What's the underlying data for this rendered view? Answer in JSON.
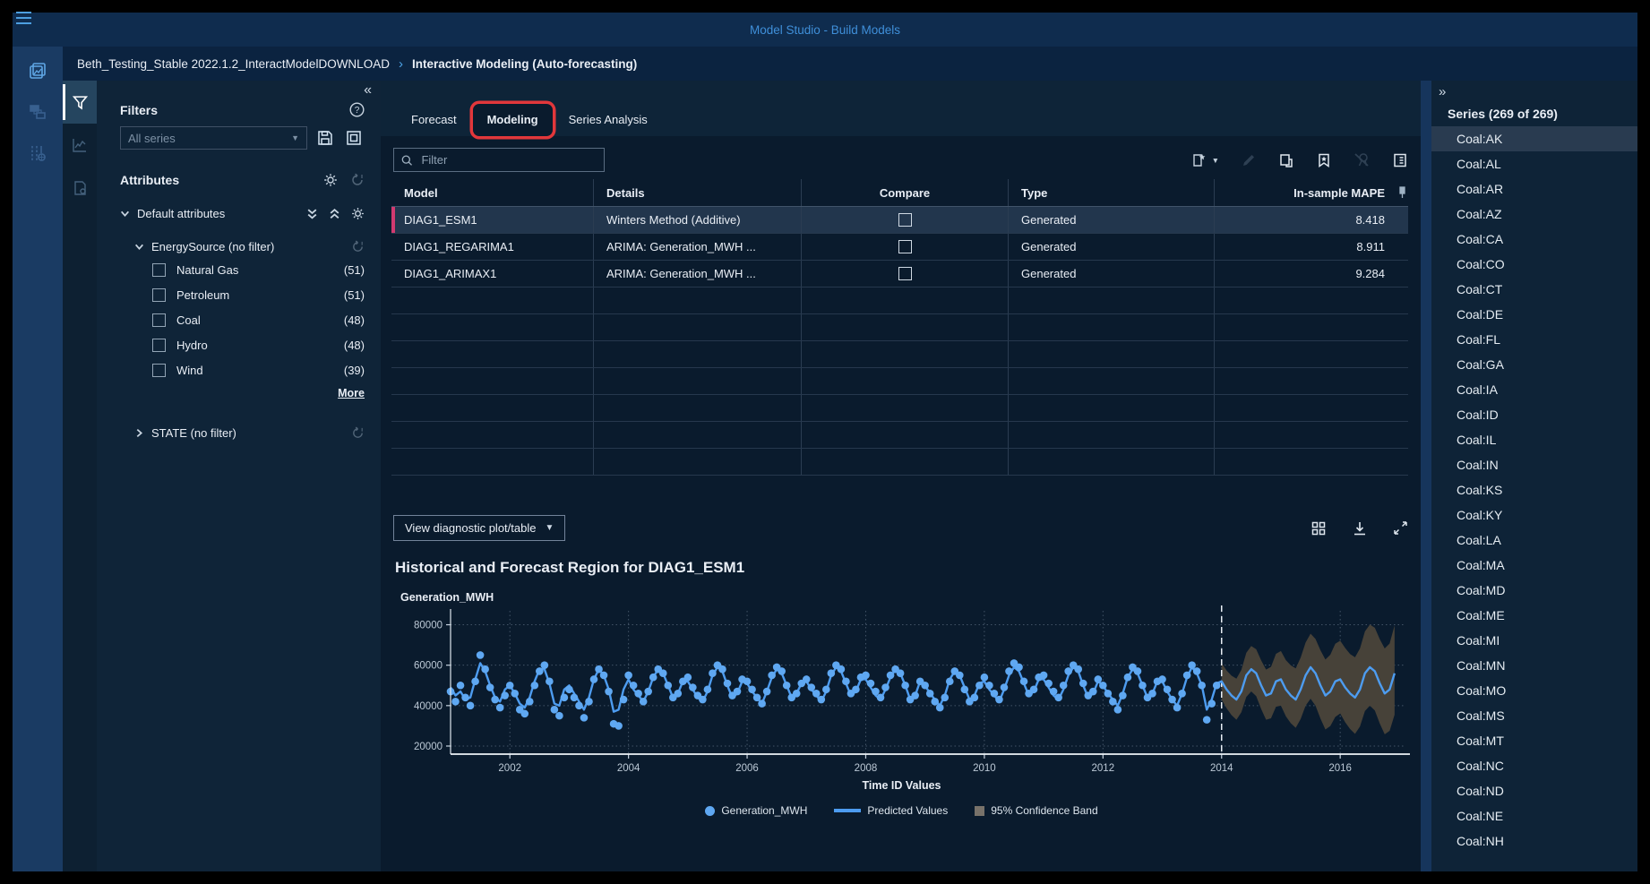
{
  "topbar": {
    "title": "Model Studio - Build Models"
  },
  "breadcrumb": {
    "project": "Beth_Testing_Stable 2022.1.2_InteractModelDOWNLOAD",
    "separator": "›",
    "page": "Interactive Modeling (Auto-forecasting)"
  },
  "filters_panel": {
    "collapse_glyph": "«",
    "title": "Filters",
    "series_dropdown": {
      "value": "All series",
      "disabled": true
    },
    "attributes_title": "Attributes",
    "default_attributes_label": "Default attributes",
    "groups": [
      {
        "label": "EnergySource (no filter)",
        "expanded": true,
        "items": [
          {
            "label": "Natural Gas",
            "count": "(51)"
          },
          {
            "label": "Petroleum",
            "count": "(51)"
          },
          {
            "label": "Coal",
            "count": "(48)"
          },
          {
            "label": "Hydro",
            "count": "(48)"
          },
          {
            "label": "Wind",
            "count": "(39)"
          }
        ],
        "more_label": "More"
      },
      {
        "label": "STATE (no filter)",
        "expanded": false
      }
    ]
  },
  "main": {
    "tabs": [
      {
        "label": "Forecast",
        "active": false
      },
      {
        "label": "Modeling",
        "active": true,
        "annotated": true
      },
      {
        "label": "Series Analysis",
        "active": false
      }
    ],
    "annotation_color": "#e2373b",
    "filter_input": {
      "placeholder": "Filter"
    },
    "table": {
      "columns": [
        "Model",
        "Details",
        "Compare",
        "Type",
        "In-sample MAPE"
      ],
      "rows": [
        {
          "model": "DIAG1_ESM1",
          "details": "Winters Method (Additive)",
          "compare": false,
          "type": "Generated",
          "mape": "8.418",
          "selected": true
        },
        {
          "model": "DIAG1_REGARIMA1",
          "details": "ARIMA:  Generation_MWH  ...",
          "compare": false,
          "type": "Generated",
          "mape": "8.911",
          "selected": false
        },
        {
          "model": "DIAG1_ARIMAX1",
          "details": "ARIMA:  Generation_MWH  ...",
          "compare": false,
          "type": "Generated",
          "mape": "9.284",
          "selected": false
        }
      ],
      "empty_row_count": 7
    },
    "diagnostic_button": "View diagnostic plot/table",
    "chart_title": "Historical and Forecast Region for DIAG1_ESM1"
  },
  "chart_data": {
    "type": "line",
    "title": "Historical and Forecast Region for DIAG1_ESM1",
    "ylabel": "Generation_MWH",
    "xlabel": "Time ID Values",
    "x_ticks": [
      2002,
      2004,
      2006,
      2008,
      2010,
      2012,
      2014,
      2016
    ],
    "y_ticks": [
      20000,
      40000,
      60000,
      80000
    ],
    "xlim": [
      2001,
      2017.1
    ],
    "ylim": [
      16000,
      86000
    ],
    "grid": true,
    "forecast_start": 2014,
    "unit_scale": 1000,
    "values_unit": "MWH",
    "actual_by_year": {
      "2001": [
        47,
        42,
        50,
        44,
        40,
        52,
        65,
        58,
        49,
        43,
        39,
        45
      ],
      "2002": [
        50,
        46,
        38,
        36,
        42,
        50,
        57,
        60,
        52,
        38,
        35,
        44
      ],
      "2003": [
        48,
        44,
        40,
        34,
        42,
        53,
        58,
        55,
        47,
        31,
        30,
        43
      ],
      "2004": [
        55,
        50,
        46,
        42,
        47,
        54,
        58,
        56,
        50,
        44,
        46,
        52
      ],
      "2005": [
        54,
        49,
        45,
        43,
        48,
        56,
        60,
        58,
        51,
        45,
        47,
        53
      ],
      "2006": [
        52,
        48,
        44,
        41,
        47,
        55,
        59,
        57,
        50,
        44,
        46,
        51
      ],
      "2007": [
        53,
        49,
        46,
        43,
        48,
        56,
        60,
        58,
        52,
        46,
        48,
        54
      ],
      "2008": [
        55,
        51,
        47,
        44,
        49,
        55,
        58,
        56,
        50,
        43,
        45,
        52
      ],
      "2009": [
        50,
        46,
        42,
        39,
        44,
        52,
        57,
        55,
        48,
        42,
        44,
        50
      ],
      "2010": [
        54,
        50,
        46,
        43,
        49,
        57,
        61,
        59,
        52,
        46,
        48,
        54
      ],
      "2011": [
        55,
        51,
        47,
        44,
        50,
        57,
        60,
        58,
        51,
        45,
        47,
        53
      ],
      "2012": [
        50,
        46,
        42,
        38,
        45,
        54,
        59,
        57,
        50,
        44,
        46,
        52
      ],
      "2013": [
        53,
        48,
        43,
        39,
        46,
        55,
        60,
        57,
        50,
        33,
        41,
        50
      ]
    },
    "predicted_by_year": {
      "2001": [
        49,
        45,
        47,
        43,
        44,
        53,
        61,
        57,
        50,
        44,
        42,
        48
      ],
      "2002": [
        50,
        46,
        41,
        39,
        44,
        52,
        58,
        58,
        51,
        41,
        40,
        48
      ],
      "2003": [
        50,
        46,
        42,
        38,
        44,
        53,
        58,
        55,
        48,
        37,
        38,
        48
      ],
      "2004": [
        53,
        48,
        45,
        42,
        47,
        54,
        58,
        56,
        50,
        44,
        46,
        52
      ],
      "2005": [
        52,
        48,
        44,
        42,
        47,
        55,
        59,
        57,
        50,
        44,
        46,
        52
      ],
      "2006": [
        51,
        47,
        44,
        41,
        47,
        54,
        58,
        56,
        50,
        44,
        46,
        51
      ],
      "2007": [
        52,
        48,
        45,
        42,
        47,
        55,
        59,
        57,
        51,
        45,
        47,
        53
      ],
      "2008": [
        53,
        49,
        45,
        43,
        48,
        54,
        58,
        56,
        50,
        43,
        45,
        52
      ],
      "2009": [
        50,
        46,
        43,
        40,
        45,
        53,
        57,
        55,
        49,
        43,
        45,
        51
      ],
      "2010": [
        52,
        48,
        45,
        42,
        48,
        55,
        59,
        57,
        51,
        45,
        47,
        53
      ],
      "2011": [
        53,
        49,
        45,
        43,
        48,
        55,
        59,
        57,
        50,
        44,
        46,
        52
      ],
      "2012": [
        50,
        46,
        43,
        40,
        46,
        54,
        58,
        56,
        50,
        44,
        46,
        52
      ],
      "2013": [
        52,
        47,
        43,
        40,
        46,
        54,
        59,
        56,
        50,
        38,
        43,
        51
      ]
    },
    "forecast": {
      "start_year": 2014,
      "predicted": [
        52,
        48,
        45,
        43,
        47,
        55,
        58,
        56,
        50,
        45,
        46,
        52,
        53,
        48,
        45,
        43,
        48,
        55,
        59,
        56,
        50,
        45,
        47,
        52,
        53,
        49,
        46,
        44,
        48,
        56,
        59,
        57,
        51,
        46,
        48,
        56
      ],
      "lower": [
        43,
        38.7,
        35.3,
        33,
        36.7,
        44.3,
        47,
        44.7,
        38.4,
        33,
        33.7,
        39.4,
        40,
        34.7,
        31.3,
        29,
        33.4,
        40,
        43.4,
        40,
        33.6,
        28.2,
        29.9,
        34.4,
        36.1,
        31.8,
        28.4,
        26,
        29.7,
        37.3,
        40,
        37.6,
        31.2,
        25.8,
        27.5,
        35.5
      ],
      "upper": [
        61,
        57.4,
        54.8,
        53.3,
        57.7,
        66.1,
        69.5,
        67.9,
        62.4,
        57.8,
        59.2,
        65.6,
        67,
        62.5,
        59.9,
        58.4,
        63.8,
        71.2,
        75.6,
        73,
        67.4,
        62.8,
        65.2,
        70.6,
        72.1,
        68.5,
        65.5,
        63.9,
        68.3,
        76.7,
        80.1,
        78.5,
        72.9,
        68.3,
        70.7,
        79.7
      ]
    },
    "legend": [
      {
        "label": "Generation_MWH",
        "swatch": "dot",
        "color": "#5fa8f2"
      },
      {
        "label": "Predicted Values",
        "swatch": "line",
        "color": "#4d9cf0"
      },
      {
        "label": "95% Confidence Band",
        "swatch": "square",
        "color": "#78726a"
      }
    ],
    "colors": {
      "points": "#5fa8f2",
      "line": "#4d9cf0",
      "band": "#474239",
      "divider": "#e8eef5"
    }
  },
  "right_panel": {
    "expand_glyph": "»",
    "title": "Series (269 of 269)",
    "selected_index": 0,
    "items": [
      "Coal:AK",
      "Coal:AL",
      "Coal:AR",
      "Coal:AZ",
      "Coal:CA",
      "Coal:CO",
      "Coal:CT",
      "Coal:DE",
      "Coal:FL",
      "Coal:GA",
      "Coal:IA",
      "Coal:ID",
      "Coal:IL",
      "Coal:IN",
      "Coal:KS",
      "Coal:KY",
      "Coal:LA",
      "Coal:MA",
      "Coal:MD",
      "Coal:ME",
      "Coal:MI",
      "Coal:MN",
      "Coal:MO",
      "Coal:MS",
      "Coal:MT",
      "Coal:NC",
      "Coal:ND",
      "Coal:NE",
      "Coal:NH"
    ]
  },
  "icons": {
    "topbar": [
      "menu-icon"
    ],
    "left_rail": [
      "projects-icon",
      "pipelines-icon",
      "data-icon"
    ],
    "sub_rail": [
      "filter-funnel-icon",
      "timeseries-icon",
      "report-icon"
    ],
    "filters": [
      "collapse-left-icon",
      "help-icon",
      "dropdown-caret-icon",
      "save-filter-icon",
      "apply-filter-icon",
      "gear-icon",
      "reset-filter-icon",
      "expand-all-icon",
      "collapse-all-icon",
      "chevron-down-icon",
      "chevron-right-icon"
    ],
    "table_toolbar": [
      "search-icon",
      "new-model-icon",
      "edit-pencil-icon",
      "copy-icon",
      "bookmark-star-icon",
      "champion-icon",
      "properties-icon",
      "column-pin-icon"
    ],
    "diagnostics": [
      "tiles-icon",
      "download-icon",
      "expand-icon"
    ],
    "right_panel": [
      "expand-right-icon"
    ]
  }
}
